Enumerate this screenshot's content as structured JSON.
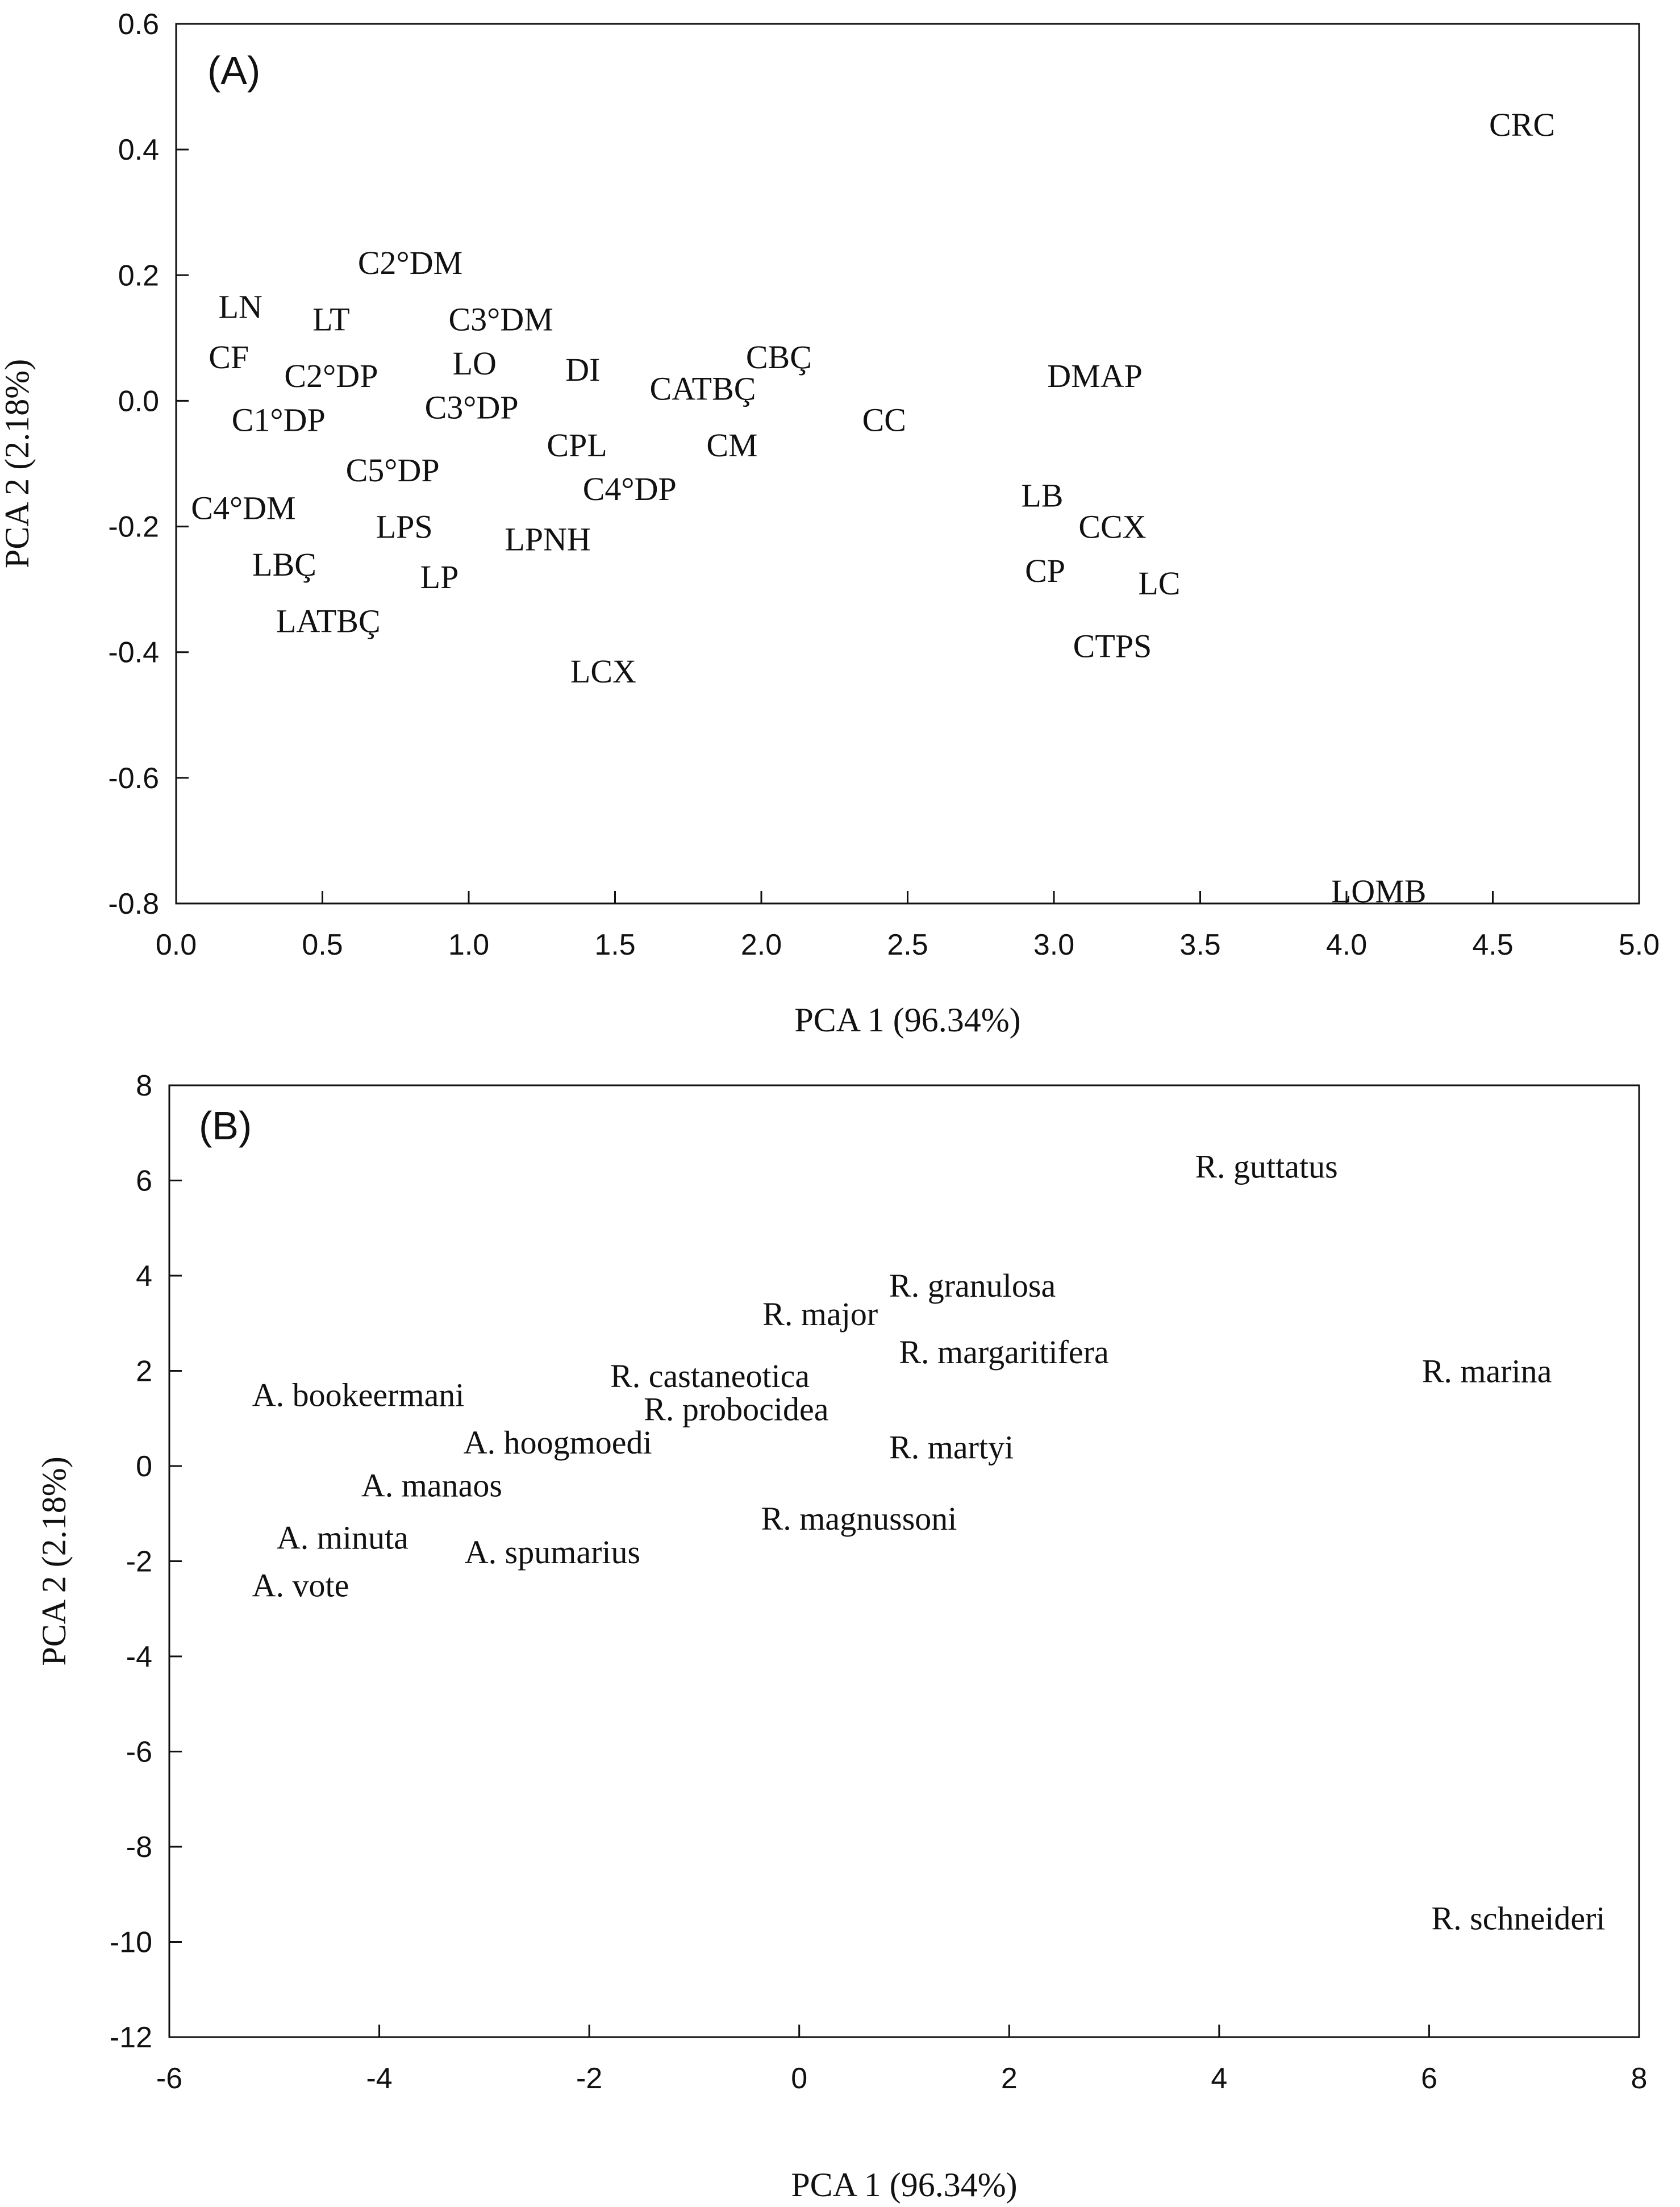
{
  "chart_data": [
    {
      "type": "scatter",
      "panel_label": "(A)",
      "xlabel": "PCA 1 (96.34%)",
      "ylabel": "PCA 2 (2.18%)",
      "xlim": [
        0,
        5
      ],
      "ylim": [
        -0.8,
        0.6
      ],
      "x_ticks": [
        0,
        0.5,
        1,
        1.5,
        2,
        2.5,
        3,
        3.5,
        4,
        4.5,
        5
      ],
      "x_tick_labels": [
        "0.0",
        "0.5",
        "1.0",
        "1.5",
        "2.0",
        "2.5",
        "3.0",
        "3.5",
        "4.0",
        "4.5",
        "5.0"
      ],
      "y_ticks": [
        0.6,
        0.4,
        0.2,
        0,
        -0.2,
        -0.4,
        -0.6,
        -0.8
      ],
      "y_tick_labels": [
        "0.6",
        "0.4",
        "0.2",
        "0.0",
        "-0.2",
        "-0.4",
        "-0.6",
        "-0.8"
      ],
      "points": [
        {
          "label": "CRC",
          "x": 4.6,
          "y": 0.44
        },
        {
          "label": "C2°DM",
          "x": 0.8,
          "y": 0.22
        },
        {
          "label": "LN",
          "x": 0.22,
          "y": 0.15
        },
        {
          "label": "LT",
          "x": 0.53,
          "y": 0.13
        },
        {
          "label": "C3°DM",
          "x": 1.11,
          "y": 0.13
        },
        {
          "label": "CF",
          "x": 0.18,
          "y": 0.07
        },
        {
          "label": "C2°DP",
          "x": 0.53,
          "y": 0.04
        },
        {
          "label": "LO",
          "x": 1.02,
          "y": 0.06
        },
        {
          "label": "DI",
          "x": 1.39,
          "y": 0.05
        },
        {
          "label": "CBÇ",
          "x": 2.06,
          "y": 0.07
        },
        {
          "label": "CATBÇ",
          "x": 1.8,
          "y": 0.02
        },
        {
          "label": "DMAP",
          "x": 3.14,
          "y": 0.04
        },
        {
          "label": "C1°DP",
          "x": 0.35,
          "y": -0.03
        },
        {
          "label": "C3°DP",
          "x": 1.01,
          "y": -0.01
        },
        {
          "label": "CC",
          "x": 2.42,
          "y": -0.03
        },
        {
          "label": "CPL",
          "x": 1.37,
          "y": -0.07
        },
        {
          "label": "CM",
          "x": 1.9,
          "y": -0.07
        },
        {
          "label": "C5°DP",
          "x": 0.74,
          "y": -0.11
        },
        {
          "label": "C4°DP",
          "x": 1.55,
          "y": -0.14
        },
        {
          "label": "C4°DM",
          "x": 0.23,
          "y": -0.17
        },
        {
          "label": "LB",
          "x": 2.96,
          "y": -0.15
        },
        {
          "label": "LPS",
          "x": 0.78,
          "y": -0.2
        },
        {
          "label": "CCX",
          "x": 3.2,
          "y": -0.2
        },
        {
          "label": "LPNH",
          "x": 1.27,
          "y": -0.22
        },
        {
          "label": "LBÇ",
          "x": 0.37,
          "y": -0.26
        },
        {
          "label": "CP",
          "x": 2.97,
          "y": -0.27
        },
        {
          "label": "LP",
          "x": 0.9,
          "y": -0.28
        },
        {
          "label": "LC",
          "x": 3.36,
          "y": -0.29
        },
        {
          "label": "LATBÇ",
          "x": 0.52,
          "y": -0.35
        },
        {
          "label": "CTPS",
          "x": 3.2,
          "y": -0.39
        },
        {
          "label": "LCX",
          "x": 1.46,
          "y": -0.43
        },
        {
          "label": "LOMB",
          "x": 4.11,
          "y": -0.78
        }
      ]
    },
    {
      "type": "scatter",
      "panel_label": "(B)",
      "xlabel": "PCA 1 (96.34%)",
      "ylabel": "PCA 2 (2.18%)",
      "xlim": [
        -6,
        8
      ],
      "ylim": [
        -12,
        8
      ],
      "x_ticks": [
        -6,
        -4,
        -2,
        0,
        2,
        4,
        6,
        8
      ],
      "x_tick_labels": [
        "-6",
        "-4",
        "-2",
        "0",
        "2",
        "4",
        "6",
        "8"
      ],
      "y_ticks": [
        8,
        6,
        4,
        2,
        0,
        -2,
        -4,
        -6,
        -8,
        -10,
        -12
      ],
      "y_tick_labels": [
        "8",
        "6",
        "4",
        "2",
        "0",
        "-2",
        "-4",
        "-6",
        "-8",
        "-10",
        "-12"
      ],
      "points": [
        {
          "label": "R. guttatus",
          "x": 4.45,
          "y": 6.3
        },
        {
          "label": "R. granulosa",
          "x": 1.65,
          "y": 3.8
        },
        {
          "label": "R. major",
          "x": 0.2,
          "y": 3.2
        },
        {
          "label": "R. margaritifera",
          "x": 1.95,
          "y": 2.4
        },
        {
          "label": "R. marina",
          "x": 6.55,
          "y": 2.0
        },
        {
          "label": "A. bookeermani",
          "x": -4.2,
          "y": 1.5
        },
        {
          "label": "R. castaneotica",
          "x": -0.85,
          "y": 1.9
        },
        {
          "label": "R. probocidea",
          "x": -0.6,
          "y": 1.2
        },
        {
          "label": "A. hoogmoedi",
          "x": -2.3,
          "y": 0.5
        },
        {
          "label": "R. martyi",
          "x": 1.45,
          "y": 0.4
        },
        {
          "label": "A. manaos",
          "x": -3.5,
          "y": -0.4
        },
        {
          "label": "R. magnussoni",
          "x": 0.57,
          "y": -1.1
        },
        {
          "label": "A. minuta",
          "x": -4.35,
          "y": -1.5
        },
        {
          "label": "A. spumarius",
          "x": -2.35,
          "y": -1.8
        },
        {
          "label": "A. vote",
          "x": -4.75,
          "y": -2.5
        },
        {
          "label": "R. schneideri",
          "x": 6.85,
          "y": -9.5
        }
      ]
    }
  ]
}
